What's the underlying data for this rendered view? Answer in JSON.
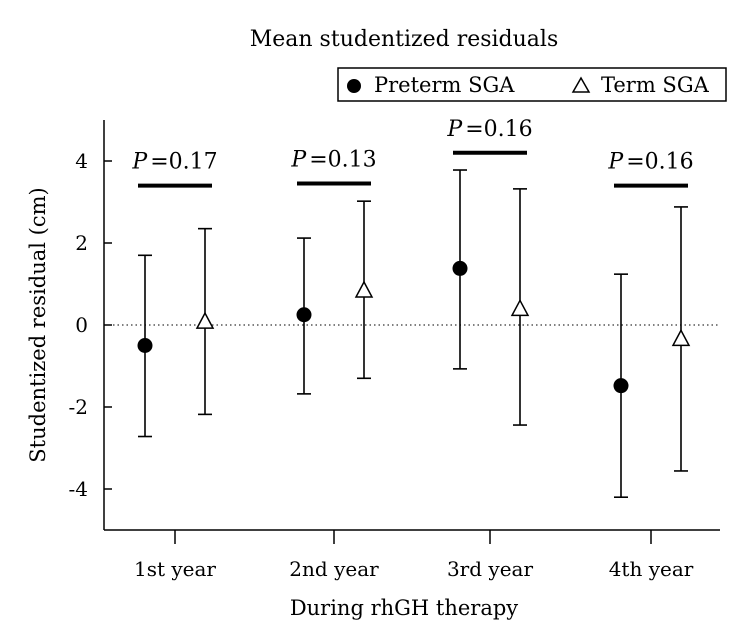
{
  "chart_data": {
    "type": "scatter",
    "title": "Mean studentized residuals",
    "xlabel": "During rhGH therapy",
    "ylabel": "Studentized residual (cm)",
    "categories": [
      "1st year",
      "2nd year",
      "3rd year",
      "4th year"
    ],
    "ylim": [
      -5,
      5
    ],
    "yticks": [
      4,
      2,
      0,
      -2,
      -4
    ],
    "ytick_labels": [
      "4",
      "2",
      "0",
      "-2",
      "-4"
    ],
    "reference_line": 0,
    "legend": [
      {
        "name": "Preterm SGA",
        "marker": "filled-circle"
      },
      {
        "name": "Term SGA",
        "marker": "open-triangle"
      }
    ],
    "legend_position": "top-right",
    "series": [
      {
        "name": "Preterm SGA",
        "marker": "filled-circle",
        "values": [
          -0.5,
          0.25,
          1.38,
          -1.48
        ],
        "lower": [
          -2.72,
          -1.68,
          -1.07,
          -4.2
        ],
        "upper": [
          1.7,
          2.12,
          3.78,
          1.24
        ]
      },
      {
        "name": "Term SGA",
        "marker": "open-triangle",
        "values": [
          0.07,
          0.83,
          0.38,
          -0.35
        ],
        "lower": [
          -2.18,
          -1.3,
          -2.44,
          -3.56
        ],
        "upper": [
          2.35,
          3.02,
          3.32,
          2.88
        ]
      }
    ],
    "annotations": [
      {
        "category": "1st year",
        "p_symbol": "P",
        "p_text": "=0.17",
        "bar_level": 3.4
      },
      {
        "category": "2nd year",
        "p_symbol": "P",
        "p_text": "=0.13",
        "bar_level": 3.45
      },
      {
        "category": "3rd year",
        "p_symbol": "P",
        "p_text": "=0.16",
        "bar_level": 4.2
      },
      {
        "category": "4th year",
        "p_symbol": "P",
        "p_text": "=0.16",
        "bar_level": 3.4
      }
    ]
  }
}
